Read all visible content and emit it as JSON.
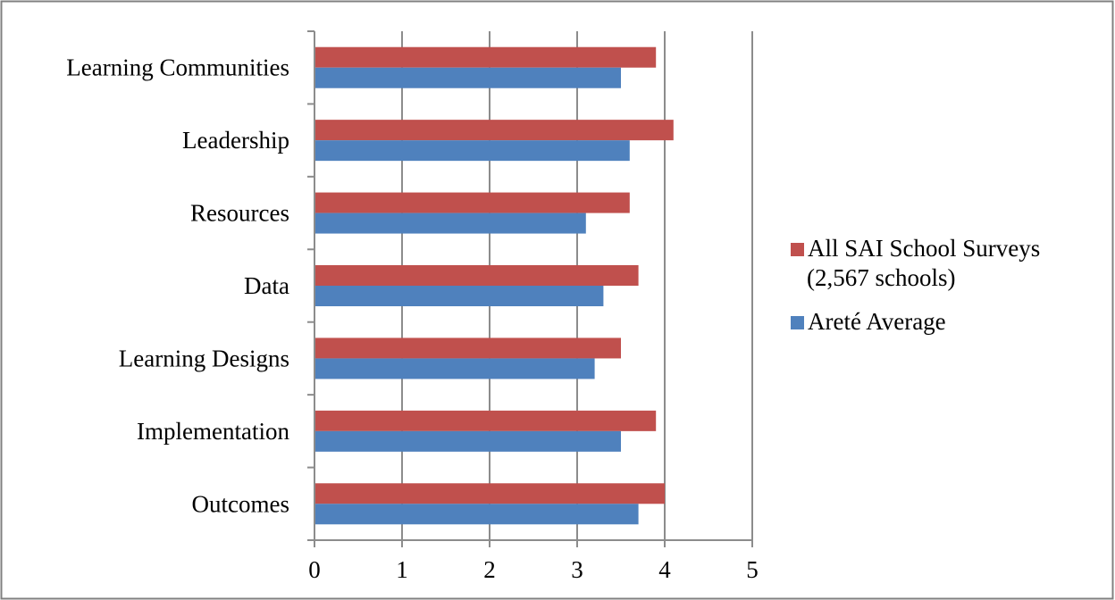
{
  "chart_data": {
    "type": "bar",
    "orientation": "horizontal",
    "categories": [
      "Learning Communities",
      "Leadership",
      "Resources",
      "Data",
      "Learning Designs",
      "Implementation",
      "Outcomes"
    ],
    "series": [
      {
        "name": "All SAI School Surveys (2,567 schools)",
        "legend_lines": [
          "All SAI School Surveys",
          "(2,567 schools)"
        ],
        "color": "#C0504D",
        "values": [
          3.9,
          4.1,
          3.6,
          3.7,
          3.5,
          3.9,
          4.0
        ]
      },
      {
        "name": "Areté Average",
        "legend_lines": [
          "Areté Average"
        ],
        "color": "#4F81BD",
        "values": [
          3.5,
          3.6,
          3.1,
          3.3,
          3.2,
          3.5,
          3.7
        ]
      }
    ],
    "xlim": [
      0,
      5
    ],
    "xticks": [
      "0",
      "1",
      "2",
      "3",
      "4",
      "5"
    ],
    "grid": true,
    "legend_position": "right"
  }
}
